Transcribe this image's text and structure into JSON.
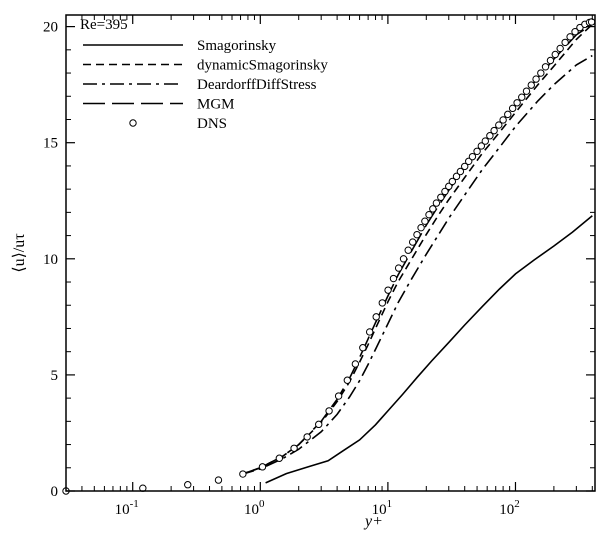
{
  "chart_data": {
    "type": "line",
    "xscale": "log",
    "xlim": [
      0.03,
      420
    ],
    "ylim": [
      0,
      20.5
    ],
    "xlabel": "y+",
    "ylabel": "⟨u⟩/uτ",
    "x_ticks": [
      {
        "value": 0.1,
        "base": "10",
        "exp": "-1"
      },
      {
        "value": 1,
        "base": "10",
        "exp": "0"
      },
      {
        "value": 10,
        "base": "10",
        "exp": "1"
      },
      {
        "value": 100,
        "base": "10",
        "exp": "2"
      }
    ],
    "y_ticks": [
      0,
      5,
      10,
      15,
      20
    ],
    "legend_title": "Re=395",
    "legend_position": "top-left",
    "grid": false,
    "series": [
      {
        "name": "Smagorinsky",
        "style": "solid",
        "x": [
          1.1,
          1.6,
          2.4,
          3.4,
          4.5,
          6,
          8,
          10,
          13,
          17,
          22,
          30,
          40,
          55,
          75,
          100,
          140,
          200,
          280,
          400
        ],
        "y": [
          0.35,
          0.75,
          1.05,
          1.3,
          1.75,
          2.2,
          2.85,
          3.45,
          4.15,
          4.9,
          5.6,
          6.4,
          7.15,
          7.95,
          8.7,
          9.35,
          9.95,
          10.55,
          11.15,
          11.85
        ]
      },
      {
        "name": "dynamicSmagorinsky",
        "style": "dashed",
        "x": [
          0.7,
          1,
          1.5,
          2,
          3,
          4,
          5,
          6,
          7,
          8,
          10,
          12,
          15,
          20,
          25,
          30,
          40,
          55,
          75,
          100,
          150,
          200,
          300,
          400
        ],
        "y": [
          0.7,
          1,
          1.5,
          2,
          2.95,
          3.85,
          4.7,
          5.55,
          6.3,
          7,
          8.15,
          9,
          9.9,
          11.05,
          11.9,
          12.55,
          13.5,
          14.55,
          15.45,
          16.3,
          17.5,
          18.3,
          19.45,
          20.1
        ]
      },
      {
        "name": "DeardorffDiffStress",
        "style": "dashdot",
        "x": [
          0.7,
          1,
          1.5,
          2,
          3,
          4,
          5,
          6,
          7,
          8,
          10,
          12,
          15,
          20,
          25,
          30,
          40,
          55,
          75,
          100,
          150,
          200,
          300,
          400
        ],
        "y": [
          0.7,
          0.95,
          1.4,
          1.8,
          2.55,
          3.3,
          4.05,
          4.75,
          5.45,
          6.1,
          7.2,
          8.1,
          9.05,
          10.2,
          11.05,
          11.75,
          12.75,
          13.85,
          14.8,
          15.7,
          16.8,
          17.5,
          18.35,
          18.75
        ]
      },
      {
        "name": "MGM",
        "style": "longdash",
        "x": [
          0.7,
          1,
          1.5,
          2,
          3,
          4,
          5,
          6,
          7,
          8,
          10,
          12,
          15,
          20,
          25,
          30,
          40,
          55,
          75,
          100,
          150,
          200,
          300,
          400
        ],
        "y": [
          0.7,
          1,
          1.5,
          2,
          3,
          3.95,
          4.85,
          5.75,
          6.55,
          7.25,
          8.4,
          9.3,
          10.25,
          11.45,
          12.3,
          12.95,
          13.95,
          14.95,
          15.85,
          16.6,
          17.8,
          18.6,
          19.65,
          20.1
        ]
      },
      {
        "name": "DNS",
        "style": "markers",
        "x": [
          0.03,
          0.12,
          0.27,
          0.47,
          0.73,
          1.04,
          1.41,
          1.84,
          2.33,
          2.87,
          3.46,
          4.11,
          4.81,
          5.56,
          6.36,
          7.2,
          8.1,
          9.04,
          10.03,
          11.06,
          12.14,
          13.26,
          14.43,
          15.64,
          16.9,
          18.2,
          19.5,
          21,
          22.5,
          24,
          26,
          28,
          30,
          32,
          34.5,
          37,
          40,
          43,
          46,
          50,
          54,
          58,
          63,
          68,
          74,
          80,
          87,
          95,
          103,
          112,
          122,
          133,
          145,
          158,
          172,
          188,
          205,
          224,
          245,
          268,
          293,
          320,
          350,
          380,
          395
        ],
        "y": [
          0,
          0.12,
          0.27,
          0.47,
          0.73,
          1.04,
          1.41,
          1.84,
          2.33,
          2.87,
          3.45,
          4.09,
          4.77,
          5.47,
          6.17,
          6.85,
          7.5,
          8.1,
          8.65,
          9.15,
          9.6,
          10,
          10.37,
          10.72,
          11.04,
          11.34,
          11.62,
          11.9,
          12.15,
          12.4,
          12.65,
          12.9,
          13.12,
          13.33,
          13.55,
          13.76,
          13.98,
          14.2,
          14.4,
          14.63,
          14.86,
          15.07,
          15.3,
          15.52,
          15.76,
          15.98,
          16.22,
          16.48,
          16.72,
          16.96,
          17.22,
          17.48,
          17.74,
          18,
          18.27,
          18.54,
          18.8,
          19.06,
          19.32,
          19.56,
          19.78,
          19.96,
          20.1,
          20.18,
          20.2
        ]
      }
    ]
  }
}
